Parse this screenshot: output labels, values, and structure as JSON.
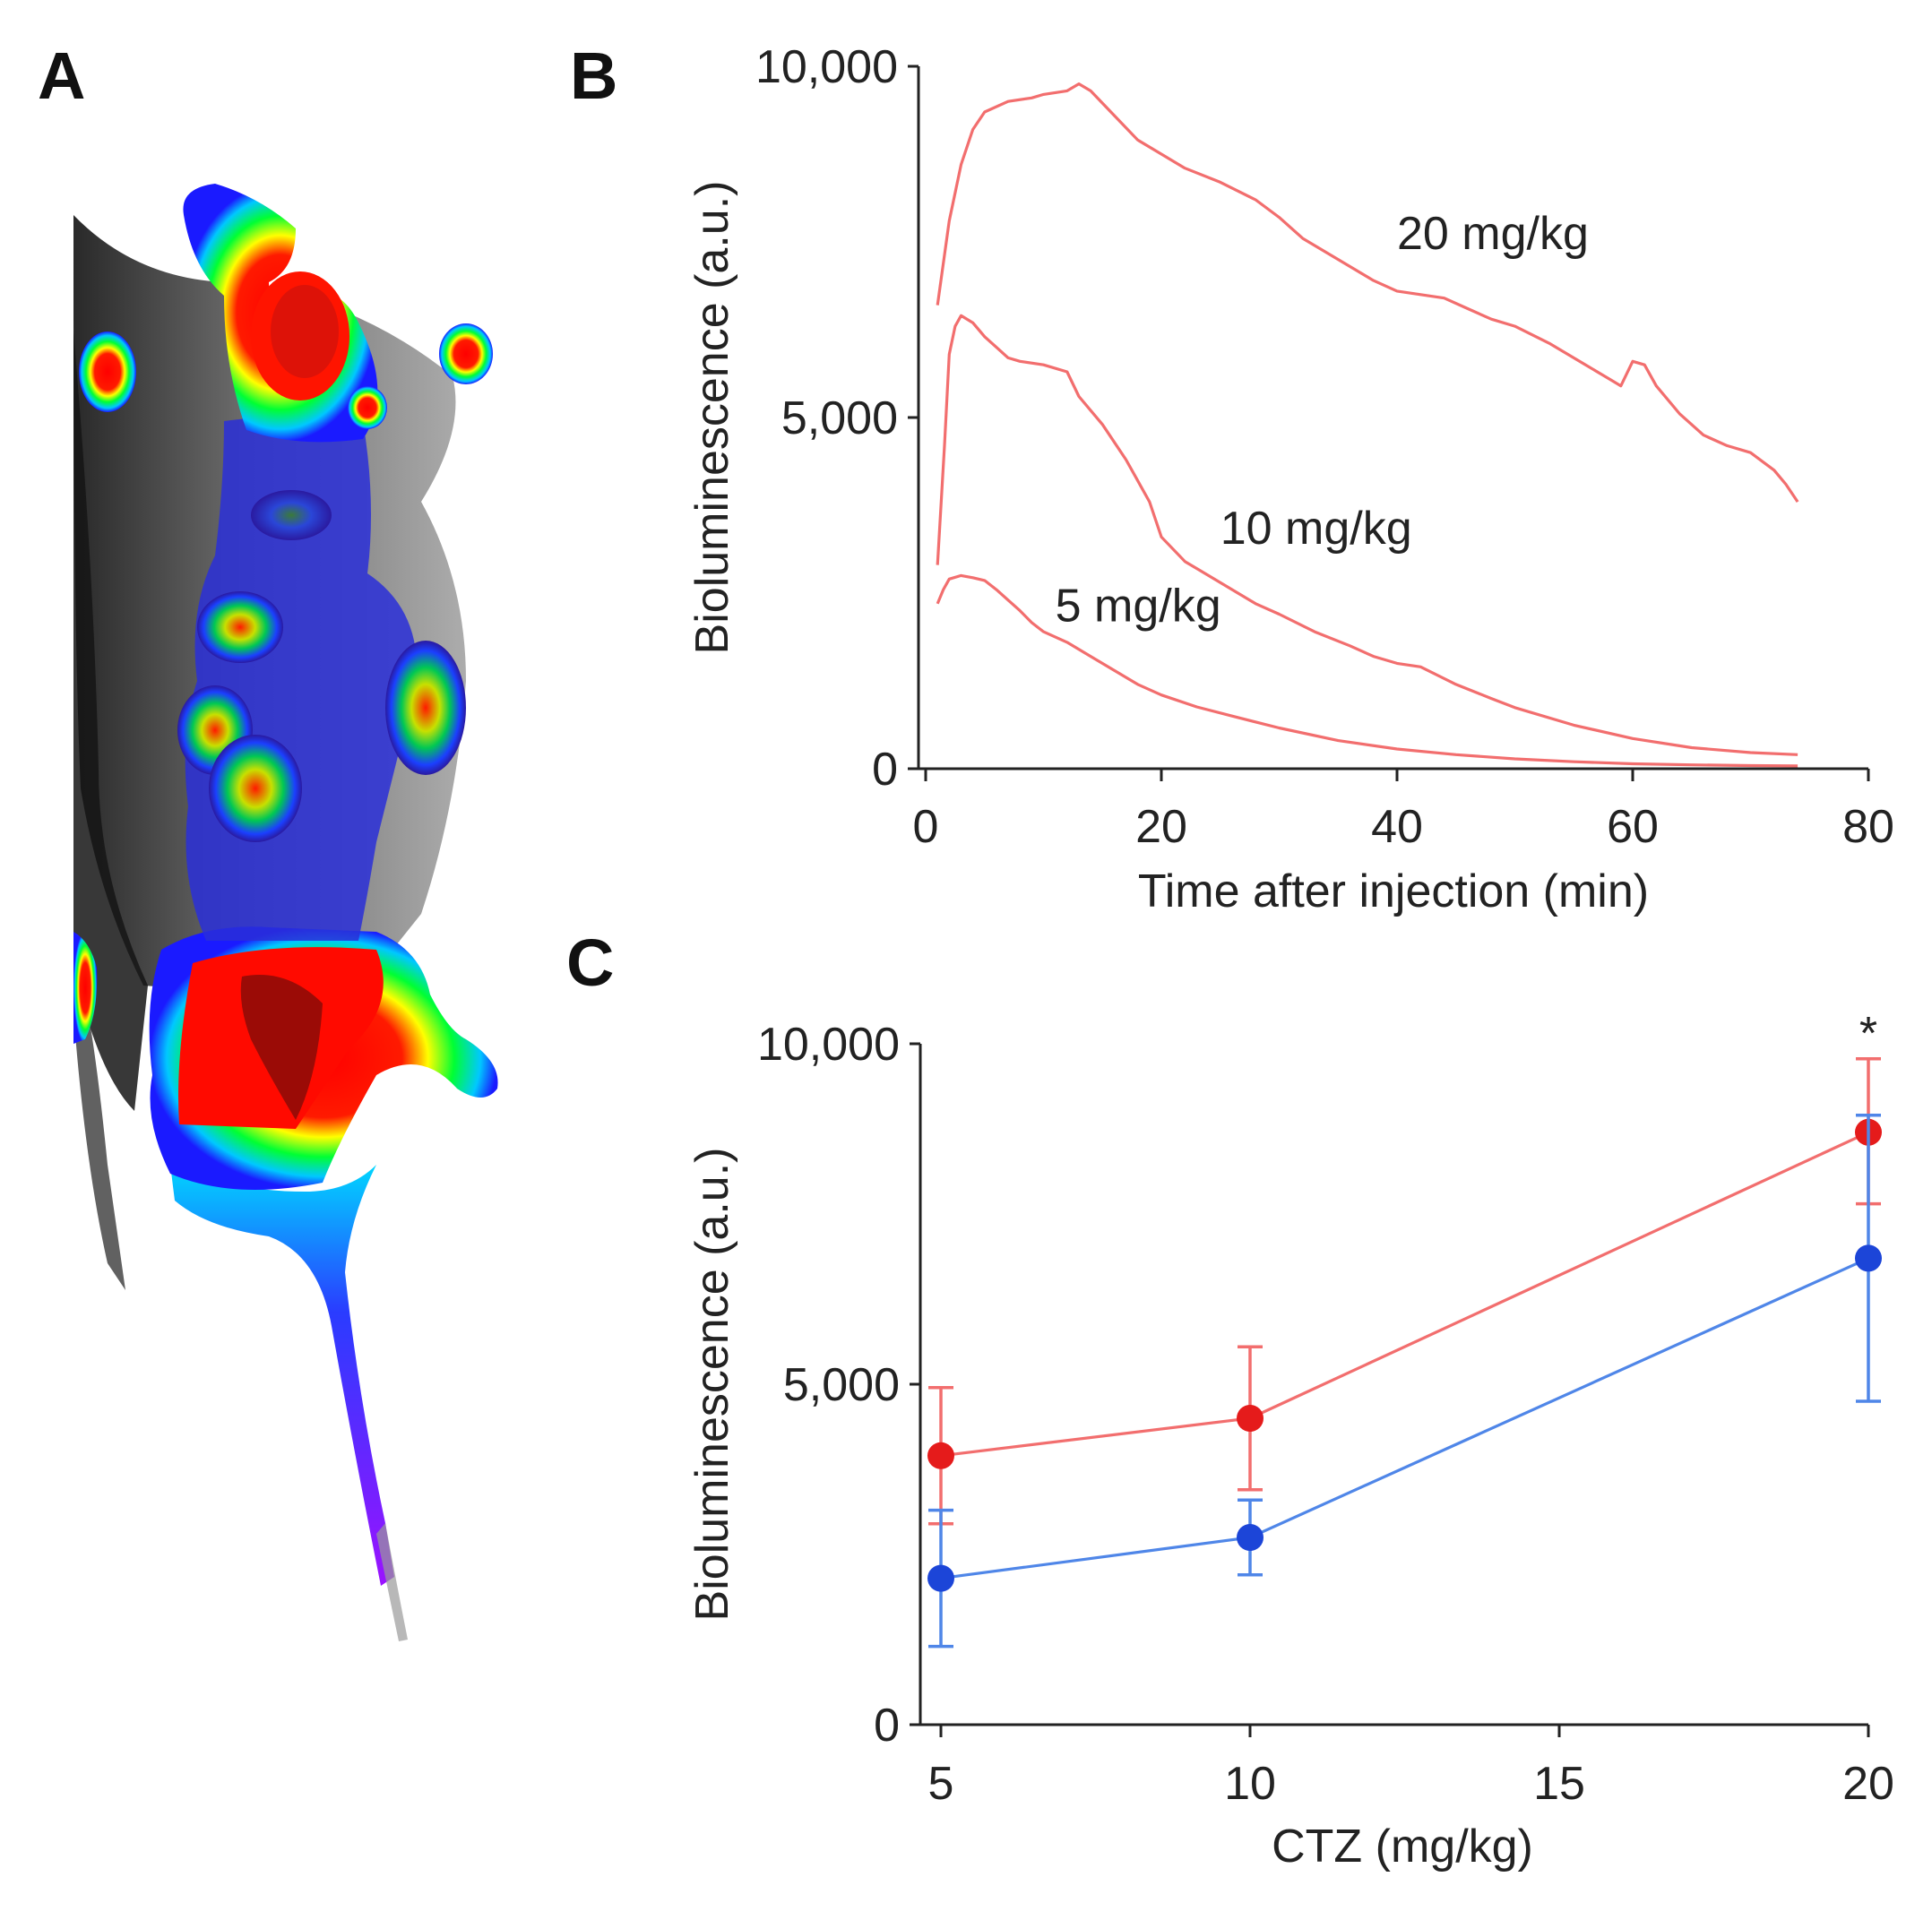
{
  "panels": {
    "a": "A",
    "b": "B",
    "c": "C"
  },
  "colors": {
    "red": "#f26e6e",
    "red_marker": "#e51b1b",
    "blue": "#4f86e8",
    "blue_marker": "#1c45d8",
    "axis": "#222222"
  },
  "chart_data": [
    {
      "panel": "B",
      "type": "line",
      "xlabel": "Time after injection (min)",
      "ylabel": "Bioluminescence (a.u.)",
      "xlim": [
        0,
        80
      ],
      "ylim": [
        0,
        10000
      ],
      "xticks": [
        0,
        20,
        40,
        60,
        80
      ],
      "xtick_labels": [
        "0",
        "20",
        "40",
        "60",
        "80"
      ],
      "yticks": [
        0,
        5000,
        10000
      ],
      "ytick_labels": [
        "0",
        "5,000",
        "10,000"
      ],
      "series": [
        {
          "name": "20 mg/kg",
          "label": "20 mg/kg",
          "label_at": [
            40,
            7400
          ],
          "x": [
            1,
            2,
            3,
            4,
            5,
            7,
            9,
            10,
            12,
            13,
            14,
            16,
            18,
            20,
            22,
            25,
            28,
            30,
            32,
            35,
            38,
            40,
            42,
            44,
            46,
            48,
            50,
            53,
            56,
            58,
            59,
            60,
            61,
            62,
            64,
            66,
            68,
            70,
            72,
            73,
            74
          ],
          "y": [
            6600,
            7800,
            8600,
            9100,
            9350,
            9500,
            9550,
            9600,
            9650,
            9750,
            9650,
            9300,
            8950,
            8750,
            8550,
            8350,
            8100,
            7850,
            7550,
            7250,
            6950,
            6800,
            6750,
            6700,
            6550,
            6400,
            6300,
            6050,
            5750,
            5550,
            5450,
            5800,
            5750,
            5450,
            5050,
            4750,
            4600,
            4500,
            4250,
            4050,
            3800
          ]
        },
        {
          "name": "10 mg/kg",
          "label": "10 mg/kg",
          "label_at": [
            25,
            3200
          ],
          "x": [
            1,
            1.6,
            2,
            2.5,
            3,
            4,
            5,
            6,
            7,
            8,
            10,
            12,
            13,
            15,
            17,
            19,
            20,
            22,
            25,
            28,
            30,
            33,
            36,
            38,
            40,
            42,
            45,
            48,
            50,
            55,
            60,
            65,
            70,
            74
          ],
          "y": [
            2900,
            4600,
            5900,
            6300,
            6450,
            6350,
            6150,
            6000,
            5850,
            5800,
            5750,
            5650,
            5300,
            4900,
            4400,
            3800,
            3300,
            2950,
            2650,
            2350,
            2200,
            1950,
            1750,
            1600,
            1500,
            1450,
            1200,
            1000,
            870,
            620,
            430,
            300,
            230,
            200
          ]
        },
        {
          "name": "5 mg/kg",
          "label": "5 mg/kg",
          "label_at": [
            11,
            2100
          ],
          "x": [
            1,
            1.5,
            2,
            3,
            4,
            5,
            6,
            7,
            8,
            9,
            10,
            12,
            14,
            16,
            18,
            20,
            23,
            26,
            30,
            35,
            40,
            45,
            50,
            55,
            60,
            65,
            70,
            74
          ],
          "y": [
            2350,
            2550,
            2700,
            2750,
            2720,
            2680,
            2550,
            2400,
            2250,
            2080,
            1950,
            1800,
            1600,
            1400,
            1200,
            1050,
            880,
            750,
            580,
            400,
            280,
            200,
            140,
            100,
            70,
            55,
            45,
            40
          ]
        }
      ]
    },
    {
      "panel": "C",
      "type": "line",
      "xlabel": "CTZ (mg/kg)",
      "ylabel": "Bioluminescence (a.u.)",
      "xlim": [
        4.5,
        20
      ],
      "ylim": [
        0,
        10000
      ],
      "xticks": [
        5,
        10,
        15,
        20
      ],
      "xtick_labels": [
        "5",
        "10",
        "15",
        "20"
      ],
      "yticks": [
        0,
        5000,
        10000
      ],
      "ytick_labels": [
        "0",
        "5,000",
        "10,000"
      ],
      "annotation": {
        "text": "*",
        "x": 20,
        "y": 10050
      },
      "series": [
        {
          "name": "red series",
          "color_key": "red",
          "marker_key": "red_marker",
          "x": [
            5,
            10,
            20
          ],
          "y": [
            3950,
            4500,
            8700
          ],
          "err_low": [
            2950,
            3450,
            7650
          ],
          "err_high": [
            4950,
            5550,
            9780
          ]
        },
        {
          "name": "blue series",
          "color_key": "blue",
          "marker_key": "blue_marker",
          "x": [
            5,
            10,
            20
          ],
          "y": [
            2150,
            2750,
            6850
          ],
          "err_low": [
            1150,
            2200,
            4750
          ],
          "err_high": [
            3150,
            3300,
            8950
          ]
        }
      ]
    }
  ]
}
